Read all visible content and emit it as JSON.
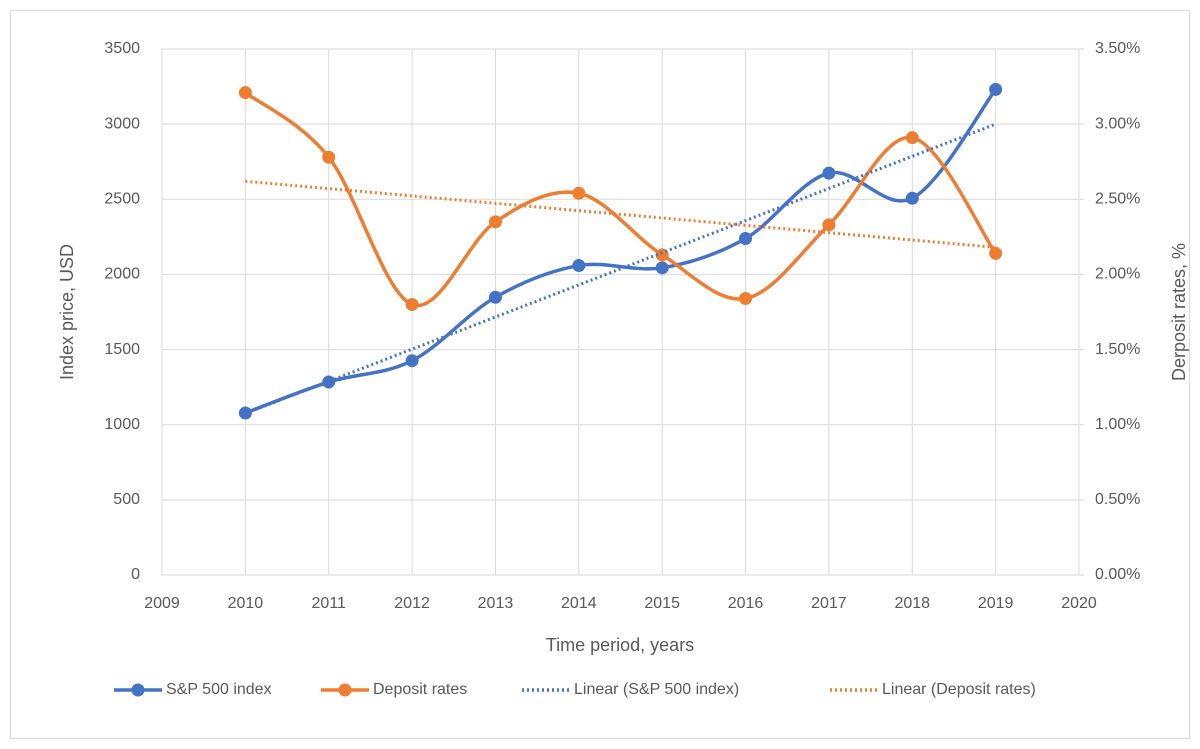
{
  "chart_data": {
    "type": "line",
    "x": [
      2010,
      2011,
      2012,
      2013,
      2014,
      2015,
      2016,
      2017,
      2018,
      2019
    ],
    "xlabel": "Time period, years",
    "ylabel": "Index price, USD",
    "y2label": "Derposit rates, %",
    "xlim": [
      2009,
      2020
    ],
    "xticks": [
      2009,
      2010,
      2011,
      2012,
      2013,
      2014,
      2015,
      2016,
      2017,
      2018,
      2019,
      2020
    ],
    "ylim": [
      0,
      3500
    ],
    "yticks": [
      0,
      500,
      1000,
      1500,
      2000,
      2500,
      3000,
      3500
    ],
    "y2lim": [
      0,
      3.5
    ],
    "y2ticks": [
      {
        "value": 0,
        "label": "0.00%"
      },
      {
        "value": 0.5,
        "label": "0.50%"
      },
      {
        "value": 1,
        "label": "1.00%"
      },
      {
        "value": 1.5,
        "label": "1.50%"
      },
      {
        "value": 2,
        "label": "2.00%"
      },
      {
        "value": 2.5,
        "label": "2.50%"
      },
      {
        "value": 3,
        "label": "3.00%"
      },
      {
        "value": 3.5,
        "label": "3.50%"
      }
    ],
    "grid": true,
    "legend": "bottom",
    "series": [
      {
        "name": "S&P 500 index",
        "color": "#4472c4",
        "style": "smooth",
        "values": [
          1078,
          1284,
          1426,
          1848,
          2059,
          2044,
          2239,
          2674,
          2507,
          3231
        ]
      },
      {
        "name": "Deposit rates",
        "color": "#ed7d31",
        "style": "smooth",
        "axis": "y2",
        "values": [
          3.21,
          2.78,
          1.8,
          2.35,
          2.54,
          2.13,
          1.84,
          2.33,
          2.91,
          2.14
        ]
      },
      {
        "name": "Linear (S&P 500 index)",
        "color": "#4472c4",
        "style": "dotted",
        "x": [
          2010,
          2019
        ],
        "values": [
          1075,
          3000
        ]
      },
      {
        "name": "Linear (Deposit rates)",
        "color": "#ed7d31",
        "style": "dotted",
        "axis": "y2",
        "x": [
          2010,
          2019
        ],
        "values": [
          2.62,
          2.18
        ]
      }
    ]
  }
}
